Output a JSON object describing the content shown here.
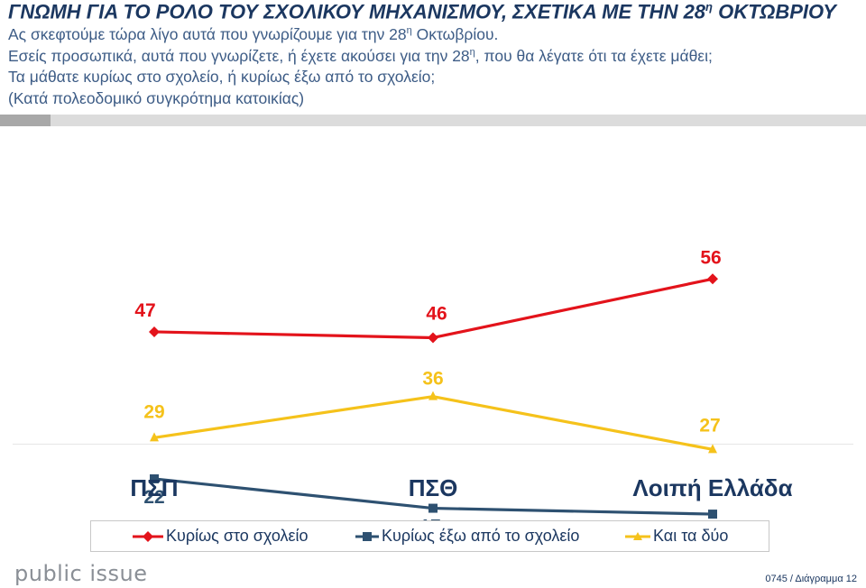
{
  "header": {
    "title_pre": "ΓΝΩΜΗ ΓΙΑ ΤΟ ΡΟΛΟ ΤΟΥ ΣΧΟΛΙΚΟΥ ΜΗΧΑΝΙΣΜΟΥ, ΣΧΕΤΙΚΑ ΜΕ ΤΗΝ 28",
    "title_sup": "η",
    "title_post": " ΟΚΤΩΒΡΙΟΥ",
    "q1_pre": "Ας σκεφτούμε τώρα λίγο αυτά  που γνωρίζουμε για την 28",
    "q1_sup": "η",
    "q1_post": " Οκτωβρίου.",
    "q2_pre": "Εσείς προσωπικά, αυτά που γνωρίζετε, ή έχετε ακούσει για την 28",
    "q2_sup": "η",
    "q2_post": ", που θα λέγατε ότι τα έχετε μάθει;",
    "q3": "Τα μάθατε κυρίως στο σχολείο, ή κυρίως έξω από το σχολείο;",
    "q4": "(Κατά πολεοδομικό συγκρότημα κατοικίας)"
  },
  "chart_data": {
    "type": "line",
    "categories": [
      "ΠΣΠ",
      "ΠΣΘ",
      "Λοιπή Ελλάδα"
    ],
    "series": [
      {
        "name": "Κυρίως στο σχολείο",
        "values": [
          47,
          46,
          56
        ],
        "color": "#e3131b",
        "marker": "diamond"
      },
      {
        "name": "Κυρίως έξω από το σχολείο",
        "values": [
          22,
          17,
          16
        ],
        "color": "#2e5171",
        "marker": "square"
      },
      {
        "name": "Και τα δύο",
        "values": [
          29,
          36,
          27
        ],
        "color": "#f5c21b",
        "marker": "triangle"
      }
    ],
    "xlabel": "",
    "ylabel": "",
    "gridlines": false,
    "legend": "bottom"
  },
  "footer": {
    "brand": "public issue",
    "ref": "0745 / Διάγραμμα 12"
  }
}
